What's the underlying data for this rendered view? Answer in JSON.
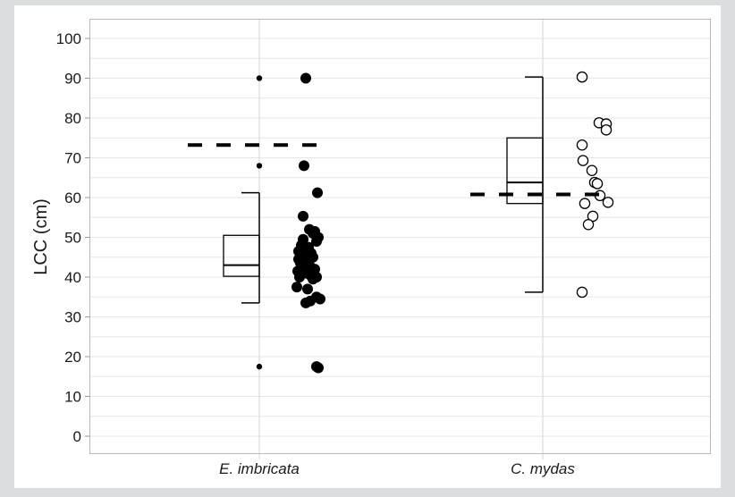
{
  "chart_data": {
    "type": "scatter",
    "title": "",
    "xlabel": "",
    "ylabel": "LCC (cm)",
    "ylim": [
      0,
      100
    ],
    "yticks": [
      0,
      10,
      20,
      30,
      40,
      50,
      60,
      70,
      80,
      90,
      100
    ],
    "grid": true,
    "categories": [
      "E. imbricata",
      "C. mydas"
    ],
    "series": [
      {
        "name": "E. imbricata",
        "marker": "filled-circle",
        "color": "#000000",
        "box": {
          "whisker_low": 33.5,
          "q1": 40.2,
          "median": 43.0,
          "q3": 50.5,
          "whisker_high": 61.2
        },
        "outliers": [
          90,
          68,
          17.5
        ],
        "reference_line": 73.2,
        "points": [
          90,
          68,
          61.2,
          55.3,
          52.0,
          51.5,
          51.0,
          50.0,
          49.5,
          49.0,
          48.0,
          47.5,
          46.5,
          46.0,
          45.5,
          45.0,
          44.5,
          44.0,
          43.5,
          43.0,
          42.5,
          42.0,
          41.5,
          41.0,
          40.5,
          40.0,
          40.0,
          39.5,
          37.5,
          37.0,
          35.0,
          34.5,
          34.0,
          33.5,
          17.5,
          17.2
        ]
      },
      {
        "name": "C. mydas",
        "marker": "open-circle",
        "color": "#000000",
        "box": {
          "whisker_low": 36.2,
          "q1": 58.5,
          "median": 63.8,
          "q3": 75.0,
          "whisker_high": 90.3
        },
        "outliers": [],
        "reference_line": 60.8,
        "points": [
          90.3,
          78.8,
          78.5,
          77.0,
          73.2,
          69.3,
          66.8,
          63.8,
          63.5,
          60.5,
          58.8,
          58.5,
          55.3,
          53.2,
          36.2
        ]
      }
    ]
  },
  "axis": {
    "y_title": "LCC (cm)",
    "y_ticks": [
      "0",
      "10",
      "20",
      "30",
      "40",
      "50",
      "60",
      "70",
      "80",
      "90",
      "100"
    ],
    "x_labels": [
      "E. imbricata",
      "C. mydas"
    ]
  },
  "colors": {
    "background": "#dcdddf",
    "panel": "#ffffff",
    "grid": "#e3e3e3",
    "frame": "#b9b9b9",
    "ink": "#000000"
  }
}
